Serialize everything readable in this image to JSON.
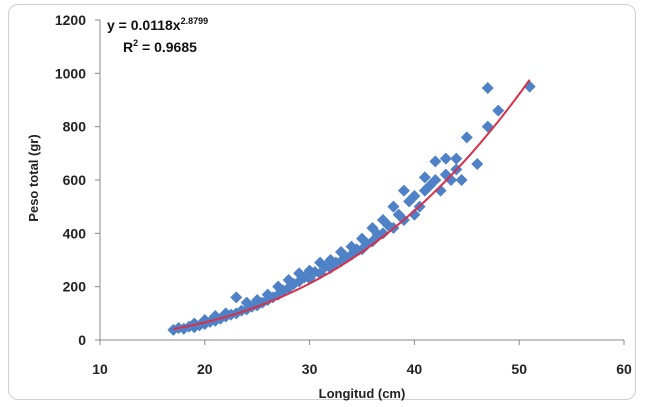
{
  "chart_data": {
    "type": "scatter",
    "xlabel": "Longitud (cm)",
    "ylabel": "Peso total (gr)",
    "xlim": [
      10,
      60
    ],
    "ylim": [
      0,
      1200
    ],
    "x_ticks": [
      "10",
      "20",
      "30",
      "40",
      "50",
      "60"
    ],
    "y_ticks": [
      "0",
      "200",
      "400",
      "600",
      "800",
      "1000",
      "1200"
    ],
    "grid": false,
    "marker_color": "#4f81c7",
    "trendline_color": "#d9304a",
    "annotation": {
      "eq_prefix": "y = 0.0118x",
      "eq_exponent": "2.8799",
      "r2_prefix": "R",
      "r2_exponent": "2",
      "r2_value": " = 0.9685"
    },
    "trendline": {
      "type": "power",
      "a": 0.0118,
      "b": 2.8799,
      "x_range": [
        17,
        51
      ]
    },
    "points": [
      [
        17,
        38
      ],
      [
        17.5,
        45
      ],
      [
        18,
        42
      ],
      [
        18.5,
        50
      ],
      [
        19,
        48
      ],
      [
        19,
        62
      ],
      [
        19.5,
        55
      ],
      [
        20,
        60
      ],
      [
        20,
        75
      ],
      [
        20.5,
        68
      ],
      [
        21,
        72
      ],
      [
        21,
        90
      ],
      [
        21.5,
        80
      ],
      [
        22,
        88
      ],
      [
        22,
        100
      ],
      [
        22.5,
        95
      ],
      [
        23,
        100
      ],
      [
        23,
        160
      ],
      [
        23.5,
        110
      ],
      [
        24,
        115
      ],
      [
        24,
        140
      ],
      [
        24.5,
        125
      ],
      [
        25,
        130
      ],
      [
        25,
        150
      ],
      [
        25.5,
        140
      ],
      [
        26,
        150
      ],
      [
        26,
        170
      ],
      [
        26.5,
        160
      ],
      [
        27,
        170
      ],
      [
        27,
        200
      ],
      [
        27.5,
        185
      ],
      [
        28,
        195
      ],
      [
        28,
        225
      ],
      [
        28.5,
        210
      ],
      [
        29,
        220
      ],
      [
        29,
        250
      ],
      [
        29.5,
        235
      ],
      [
        30,
        230
      ],
      [
        30,
        260
      ],
      [
        30.5,
        255
      ],
      [
        31,
        250
      ],
      [
        31,
        290
      ],
      [
        31.5,
        275
      ],
      [
        32,
        270
      ],
      [
        32,
        300
      ],
      [
        32.5,
        290
      ],
      [
        33,
        295
      ],
      [
        33,
        330
      ],
      [
        33.5,
        310
      ],
      [
        34,
        320
      ],
      [
        34,
        350
      ],
      [
        34.5,
        340
      ],
      [
        35,
        340
      ],
      [
        35,
        380
      ],
      [
        35.5,
        360
      ],
      [
        36,
        370
      ],
      [
        36,
        420
      ],
      [
        36.5,
        395
      ],
      [
        37,
        400
      ],
      [
        37,
        450
      ],
      [
        37.5,
        430
      ],
      [
        38,
        420
      ],
      [
        38,
        500
      ],
      [
        38.5,
        470
      ],
      [
        39,
        450
      ],
      [
        39,
        560
      ],
      [
        39.5,
        520
      ],
      [
        40,
        470
      ],
      [
        40,
        540
      ],
      [
        40.5,
        500
      ],
      [
        41,
        560
      ],
      [
        41,
        610
      ],
      [
        41.5,
        580
      ],
      [
        42,
        600
      ],
      [
        42,
        670
      ],
      [
        42.5,
        560
      ],
      [
        43,
        620
      ],
      [
        43,
        680
      ],
      [
        43.5,
        600
      ],
      [
        44,
        640
      ],
      [
        44,
        680
      ],
      [
        44.5,
        600
      ],
      [
        45,
        760
      ],
      [
        46,
        660
      ],
      [
        47,
        800
      ],
      [
        47,
        945
      ],
      [
        48,
        860
      ],
      [
        51,
        950
      ]
    ]
  }
}
